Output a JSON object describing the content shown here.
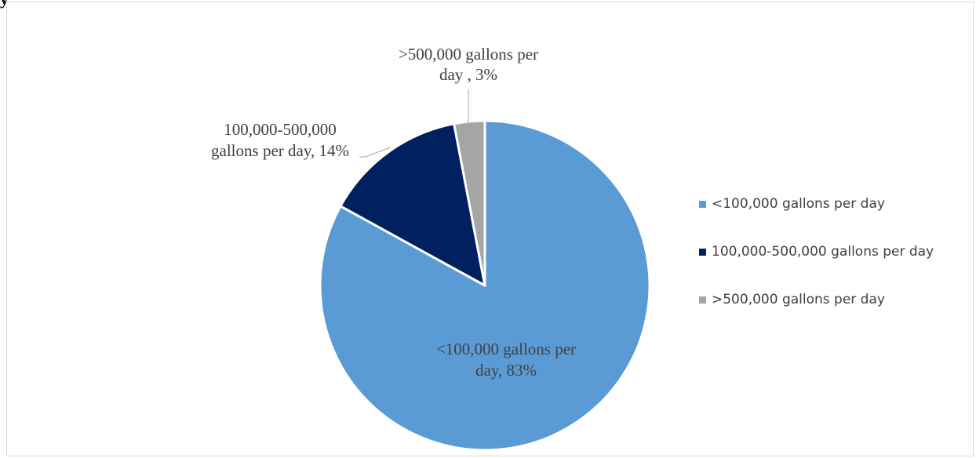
{
  "page": {
    "top_fragment": "y"
  },
  "chart_data": {
    "type": "pie",
    "title": "",
    "slices": [
      {
        "label": "<100,000 gallons per day",
        "percent": 83,
        "color": "#5b9bd5",
        "data_label_lines": [
          "<100,000 gallons per",
          "day, 83%"
        ]
      },
      {
        "label": "100,000-500,000 gallons per day",
        "percent": 14,
        "color": "#002060",
        "data_label_lines": [
          "100,000-500,000",
          "gallons per day, 14%"
        ]
      },
      {
        "label": ">500,000 gallons per day",
        "percent": 3,
        "color": "#a5a5a5",
        "data_label_lines": [
          ">500,000 gallons per",
          "day , 3%"
        ]
      }
    ],
    "legend_position": "right"
  },
  "legend": {
    "items": [
      {
        "label": "<100,000 gallons per day",
        "color": "#5b9bd5"
      },
      {
        "label": "100,000-500,000 gallons per day",
        "color": "#002060"
      },
      {
        "label": ">500,000 gallons per day",
        "color": "#a5a5a5"
      }
    ]
  }
}
